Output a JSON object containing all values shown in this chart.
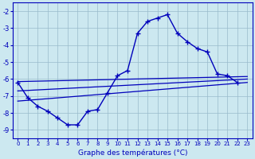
{
  "hours": [
    0,
    1,
    2,
    3,
    4,
    5,
    6,
    7,
    8,
    9,
    10,
    11,
    12,
    13,
    14,
    15,
    16,
    17,
    18,
    19,
    20,
    21,
    22,
    23
  ],
  "temp_line": [
    -6.2,
    -7.1,
    -7.6,
    -7.9,
    -8.3,
    -8.7,
    -8.7,
    -7.9,
    -7.8,
    -6.8,
    -5.8,
    -5.5,
    -3.3,
    -2.6,
    -2.4,
    -2.2,
    -3.3,
    -3.8,
    -4.2,
    -4.4,
    -5.7,
    -5.8,
    -6.2,
    null
  ],
  "line2_x": [
    0,
    23
  ],
  "line2_y": [
    -6.15,
    -5.85
  ],
  "line3_x": [
    0,
    23
  ],
  "line3_y": [
    -6.7,
    -6.0
  ],
  "line4_x": [
    0,
    23
  ],
  "line4_y": [
    -7.3,
    -6.2
  ],
  "xlim": [
    -0.5,
    23.5
  ],
  "ylim": [
    -9.5,
    -1.5
  ],
  "yticks": [
    -9,
    -8,
    -7,
    -6,
    -5,
    -4,
    -3,
    -2
  ],
  "xticks": [
    0,
    1,
    2,
    3,
    4,
    5,
    6,
    7,
    8,
    9,
    10,
    11,
    12,
    13,
    14,
    15,
    16,
    17,
    18,
    19,
    20,
    21,
    22,
    23
  ],
  "xlabel": "Graphe des températures (°C)",
  "bg_color": "#cce8f0",
  "line_color": "#0000bb",
  "grid_color": "#99bbcc",
  "marker": "+",
  "marker_size": 4,
  "marker_lw": 1.0,
  "lw_main": 1.0,
  "lw_reg": 0.9
}
